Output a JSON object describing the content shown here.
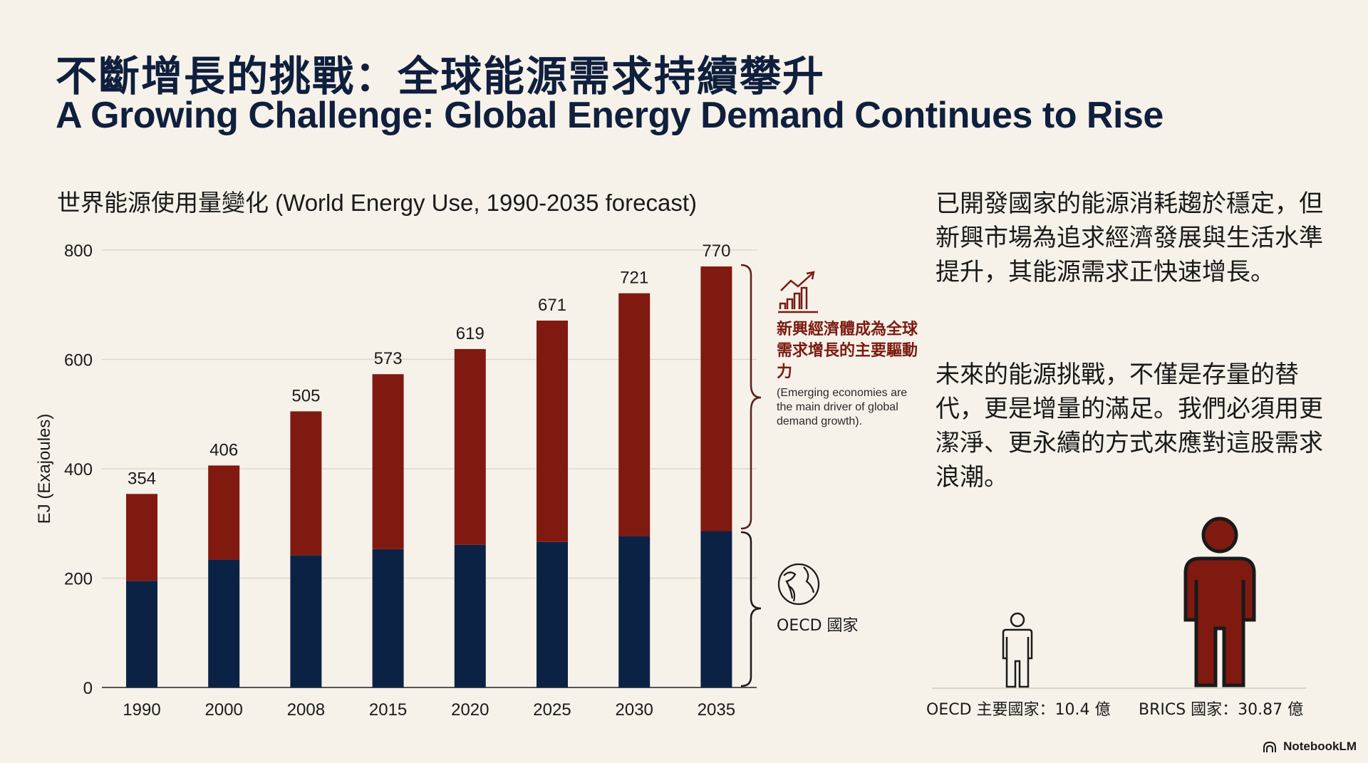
{
  "header": {
    "title_cn": "不斷增長的挑戰：全球能源需求持續攀升",
    "title_en": "A Growing Challenge: Global Energy Demand Continues to Rise"
  },
  "chart_data": {
    "type": "bar",
    "stacked": true,
    "title": "世界能源使用量變化 (World Energy Use, 1990-2035 forecast)",
    "xlabel": "",
    "ylabel": "EJ (Exajoules)",
    "ylim": [
      0,
      800
    ],
    "yticks": [
      0,
      200,
      400,
      600,
      800
    ],
    "grid": true,
    "categories": [
      "1990",
      "2000",
      "2008",
      "2015",
      "2020",
      "2025",
      "2030",
      "2035"
    ],
    "totals": [
      354,
      406,
      505,
      573,
      619,
      671,
      721,
      770
    ],
    "series": [
      {
        "name": "OECD 國家",
        "color": "#0c2245",
        "values": [
          195,
          234,
          242,
          253,
          261,
          266,
          277,
          286
        ]
      },
      {
        "name": "新興經濟體 (Emerging economies)",
        "color": "#801a10",
        "values": [
          159,
          172,
          263,
          320,
          358,
          405,
          444,
          484
        ]
      }
    ]
  },
  "annotations": {
    "emerging": {
      "icon": "growth-chart-icon",
      "text_cn": "新興經濟體成為全球需求增長的主要驅動力",
      "text_en": "(Emerging economies are the main driver of global demand growth)."
    },
    "oecd": {
      "icon": "globe-icon",
      "label": "OECD 國家"
    }
  },
  "sidebar": {
    "paragraph1": "已開發國家的能源消耗趨於穩定，但新興市場為追求經濟發展與生活水準提升，其能源需求正快速增長。",
    "paragraph2": "未來的能源挑戰，不僅是存量的替代，更是增量的滿足。我們必須用更潔淨、更永續的方式來應對這股需求浪潮。"
  },
  "population": {
    "oecd": {
      "label": "OECD 主要國家：10.4 億",
      "value": 10.4,
      "unit": "億",
      "icon": "person-outline-icon"
    },
    "brics": {
      "label": "BRICS 國家：30.87 億",
      "value": 30.87,
      "unit": "億",
      "icon": "person-filled-icon",
      "color": "#801a10"
    }
  },
  "brand": {
    "label": "NotebookLM",
    "icon": "notebooklm-logo-icon"
  },
  "colors": {
    "background": "#f6f2ea",
    "navy": "#0c2245",
    "red": "#801a10",
    "title": "#0f1f3d"
  }
}
